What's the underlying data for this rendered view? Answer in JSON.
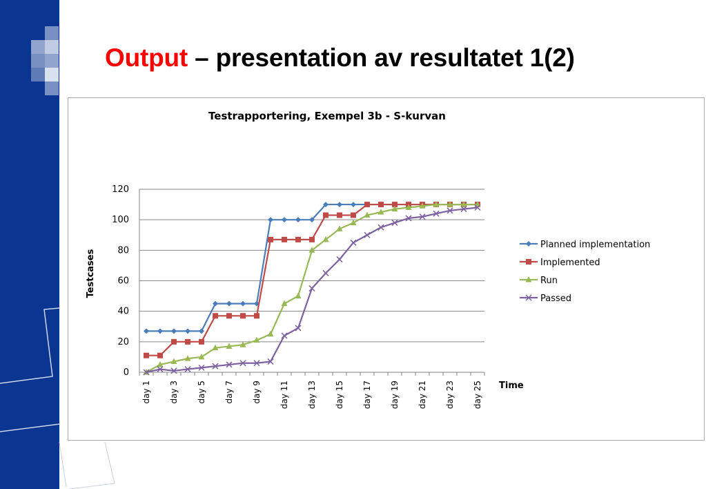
{
  "slide": {
    "title_highlight": "Output",
    "title_rest": " – presentation av resultatet 1(2)",
    "highlight_color": "#ff0000",
    "sidebar_color": "#0a3590"
  },
  "chart_data": {
    "type": "line",
    "title": "Testrapportering, Exempel 3b - S-kurvan",
    "xlabel": "Time",
    "ylabel": "Testcases",
    "ylim": [
      0,
      120
    ],
    "yticks": [
      0,
      20,
      40,
      60,
      80,
      100,
      120
    ],
    "grid": true,
    "legend": "right",
    "categories": [
      "day 1",
      "day 2",
      "day 3",
      "day 4",
      "day 5",
      "day 6",
      "day 7",
      "day 8",
      "day 9",
      "day 10",
      "day 11",
      "day 12",
      "day 13",
      "day 14",
      "day 15",
      "day 16",
      "day 17",
      "day 18",
      "day 19",
      "day 20",
      "day 21",
      "day 22",
      "day 23",
      "day 24",
      "day 25"
    ],
    "tick_labels": [
      "day 1",
      "day 3",
      "day 5",
      "day 7",
      "day 9",
      "day 11",
      "day 13",
      "day 15",
      "day 17",
      "day 19",
      "day 21",
      "day 23",
      "day 25"
    ],
    "series": [
      {
        "name": "Planned implementation",
        "color": "#4a7ebb",
        "marker": "diamond",
        "values": [
          27,
          27,
          27,
          27,
          27,
          45,
          45,
          45,
          45,
          100,
          100,
          100,
          100,
          110,
          110,
          110,
          110,
          110,
          110,
          110,
          110,
          110,
          110,
          110,
          110
        ]
      },
      {
        "name": "Implemented",
        "color": "#be4b48",
        "marker": "square",
        "values": [
          11,
          11,
          20,
          20,
          20,
          37,
          37,
          37,
          37,
          87,
          87,
          87,
          87,
          103,
          103,
          103,
          110,
          110,
          110,
          110,
          110,
          110,
          110,
          110,
          110
        ]
      },
      {
        "name": "Run",
        "color": "#98b954",
        "marker": "triangle",
        "values": [
          0,
          5,
          7,
          9,
          10,
          16,
          17,
          18,
          21,
          25,
          45,
          50,
          80,
          87,
          94,
          98,
          103,
          105,
          107,
          108,
          109,
          110,
          110,
          110,
          110
        ]
      },
      {
        "name": "Passed",
        "color": "#7d60a0",
        "marker": "x",
        "values": [
          0,
          2,
          1,
          2,
          3,
          4,
          5,
          6,
          6,
          7,
          24,
          29,
          55,
          65,
          74,
          85,
          90,
          95,
          98,
          101,
          102,
          104,
          106,
          107,
          108
        ]
      }
    ]
  }
}
